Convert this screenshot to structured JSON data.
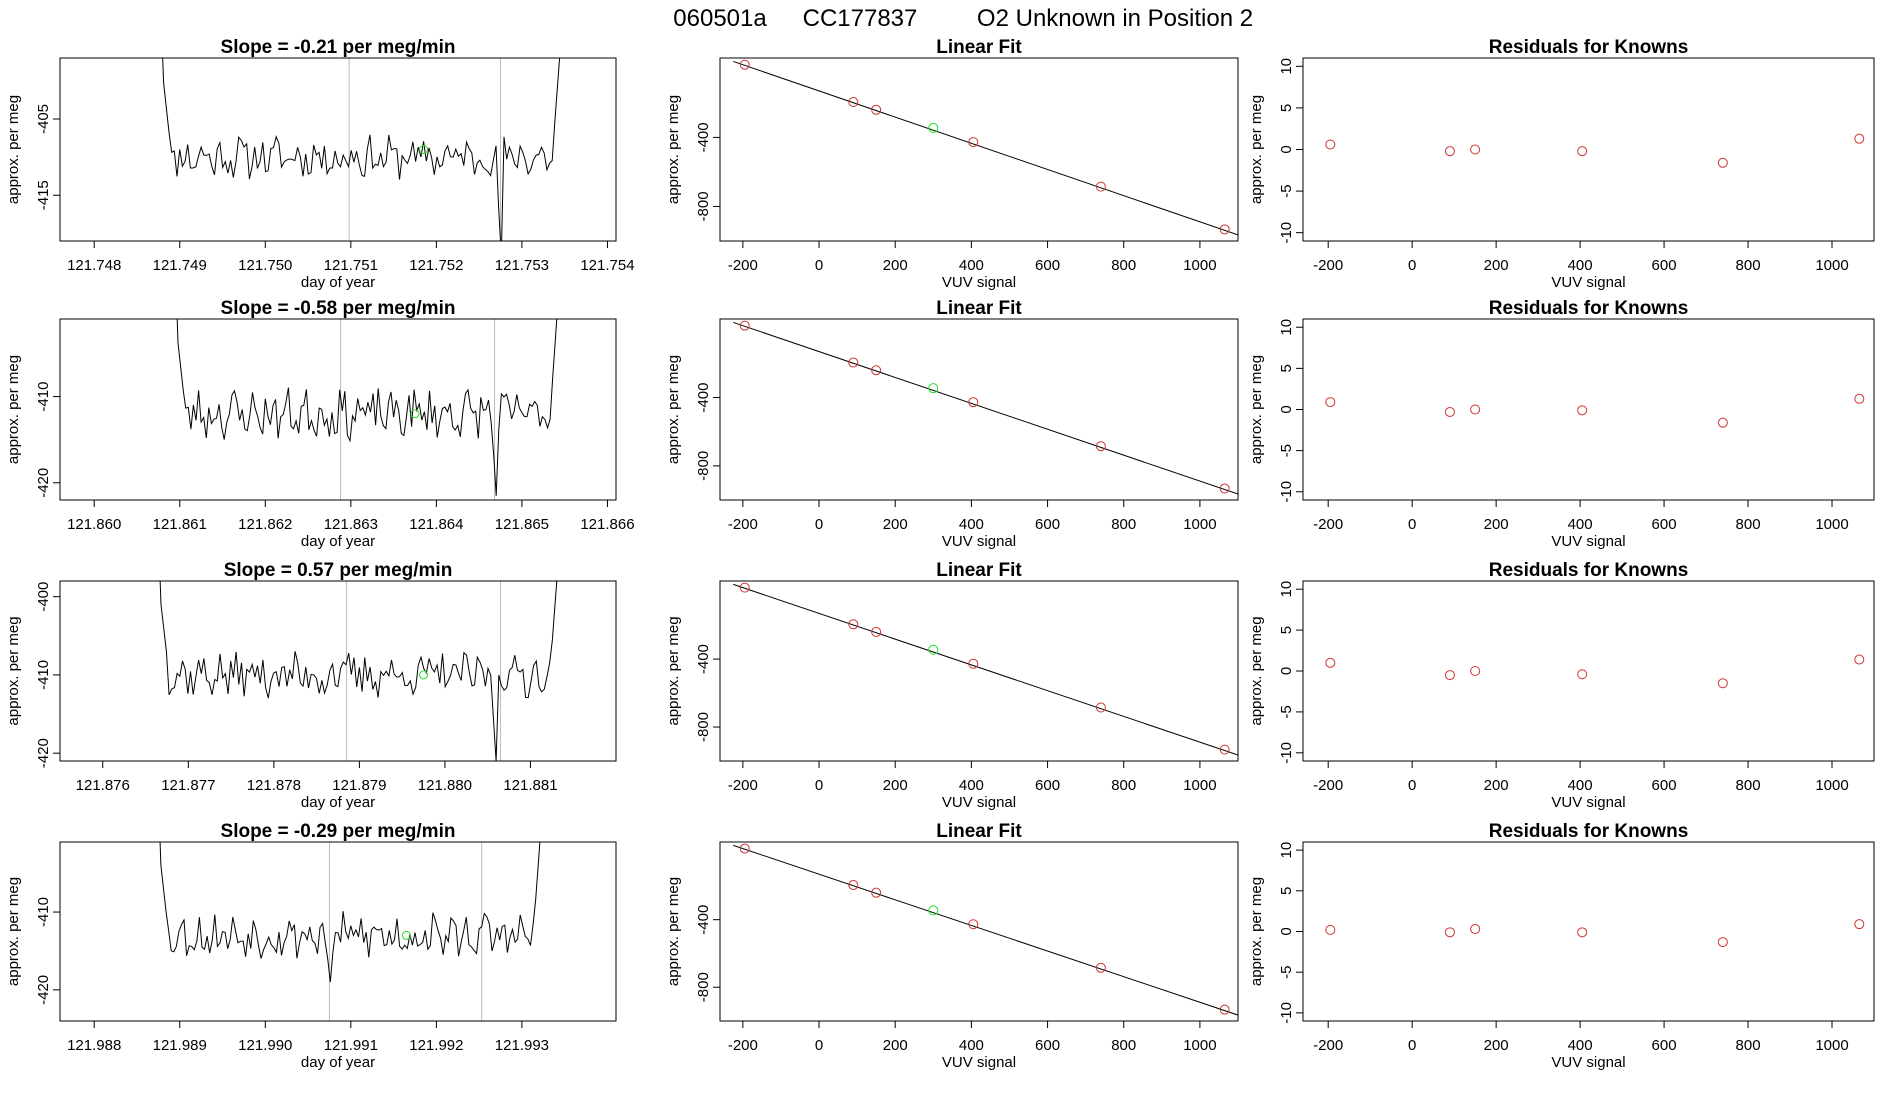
{
  "figure": {
    "title_parts": [
      "060501a",
      "CC177837",
      "O2 Unknown in Position  2"
    ],
    "colors": {
      "trace": "#000000",
      "known": "#cd3333",
      "unknown": "#22dd22",
      "vline": "#bbbbbb"
    }
  },
  "chart_data": [
    {
      "type": "line",
      "panel": "slope-1",
      "title": "Slope =  -0.21  per meg/min",
      "xlabel": "day of year",
      "ylabel": "approx. per meg",
      "xlim": [
        121.7476,
        121.7541
      ],
      "ylim": [
        -421,
        -397
      ],
      "xticks": [
        121.748,
        121.749,
        121.75,
        121.751,
        121.752,
        121.753,
        121.754
      ],
      "xtick_labels": [
        "121.748",
        "121.749",
        "121.750",
        "121.751",
        "121.752",
        "121.753",
        "121.754"
      ],
      "yticks": [
        -405,
        -415
      ],
      "ytick_labels": [
        "-405",
        "-415"
      ],
      "x_start": 121.74878,
      "x_end": 121.75348,
      "vlines": [
        121.75098,
        121.75275
      ],
      "unknown_point": [
        121.75185,
        -409
      ],
      "base": -410,
      "noise": 2.3,
      "seed": 11,
      "spike": [
        121.75275,
        -423
      ]
    },
    {
      "type": "scatter",
      "panel": "fit-1",
      "title": "Linear Fit",
      "xlabel": "VUV signal",
      "ylabel": "approx. per meg",
      "xlim": [
        -260,
        1100
      ],
      "ylim": [
        -1000,
        60
      ],
      "xticks": [
        -200,
        0,
        200,
        400,
        600,
        800,
        1000
      ],
      "yticks": [
        -400,
        -800
      ],
      "ytick_labels": [
        "-400",
        "-800"
      ],
      "fit_line": [
        [
          -225,
          40
        ],
        [
          1100,
          -965
        ]
      ],
      "known_x": [
        -195,
        90,
        150,
        405,
        740,
        1065
      ],
      "known_y": [
        21,
        -195,
        -240,
        -427,
        -685,
        -933
      ],
      "unknown_x": 300,
      "unknown_y": -345
    },
    {
      "type": "scatter",
      "panel": "resid-1",
      "title": "Residuals for Knowns",
      "xlabel": "VUV signal",
      "ylabel": "approx. per meg",
      "xlim": [
        -260,
        1100
      ],
      "ylim": [
        -11,
        11
      ],
      "xticks": [
        -200,
        0,
        200,
        400,
        600,
        800,
        1000
      ],
      "yticks": [
        10,
        5,
        0,
        -5,
        -10
      ],
      "ytick_labels": [
        "10",
        "5",
        "0",
        "-5",
        "-10"
      ],
      "x": [
        -195,
        90,
        150,
        405,
        740,
        1065
      ],
      "y": [
        0.6,
        -0.2,
        0.0,
        -0.2,
        -1.6,
        1.3
      ]
    },
    {
      "type": "line",
      "panel": "slope-2",
      "title": "Slope =  -0.58  per meg/min",
      "xlabel": "day of year",
      "ylabel": "approx. per meg",
      "xlim": [
        121.8596,
        121.8661
      ],
      "ylim": [
        -422,
        -401
      ],
      "xticks": [
        121.86,
        121.861,
        121.862,
        121.863,
        121.864,
        121.865,
        121.866
      ],
      "xtick_labels": [
        "121.860",
        "121.861",
        "121.862",
        "121.863",
        "121.864",
        "121.865",
        "121.866"
      ],
      "yticks": [
        -410,
        -420
      ],
      "ytick_labels": [
        "-410",
        "-420"
      ],
      "x_start": 121.86095,
      "x_end": 121.86545,
      "vlines": [
        121.86288,
        121.86468
      ],
      "unknown_point": [
        121.86375,
        -412
      ],
      "base": -412,
      "noise": 2.4,
      "seed": 23,
      "spike": [
        121.8647,
        -421.5
      ]
    },
    {
      "type": "scatter",
      "panel": "fit-2",
      "title": "Linear Fit",
      "xlabel": "VUV signal",
      "ylabel": "approx. per meg",
      "xlim": [
        -260,
        1100
      ],
      "ylim": [
        -1000,
        60
      ],
      "xticks": [
        -200,
        0,
        200,
        400,
        600,
        800,
        1000
      ],
      "yticks": [
        -400,
        -800
      ],
      "ytick_labels": [
        "-400",
        "-800"
      ],
      "fit_line": [
        [
          -225,
          40
        ],
        [
          1100,
          -965
        ]
      ],
      "known_x": [
        -195,
        90,
        150,
        405,
        740,
        1065
      ],
      "known_y": [
        21,
        -195,
        -240,
        -427,
        -685,
        -933
      ],
      "unknown_x": 300,
      "unknown_y": -345
    },
    {
      "type": "scatter",
      "panel": "resid-2",
      "title": "Residuals for Knowns",
      "xlabel": "VUV signal",
      "ylabel": "approx. per meg",
      "xlim": [
        -260,
        1100
      ],
      "ylim": [
        -11,
        11
      ],
      "xticks": [
        -200,
        0,
        200,
        400,
        600,
        800,
        1000
      ],
      "yticks": [
        10,
        5,
        0,
        -5,
        -10
      ],
      "ytick_labels": [
        "10",
        "5",
        "0",
        "-5",
        "-10"
      ],
      "x": [
        -195,
        90,
        150,
        405,
        740,
        1065
      ],
      "y": [
        0.9,
        -0.3,
        0.0,
        -0.1,
        -1.6,
        1.3
      ]
    },
    {
      "type": "line",
      "panel": "slope-3",
      "title": "Slope =  0.57  per meg/min",
      "xlabel": "day of year",
      "ylabel": "approx. per meg",
      "xlim": [
        121.8755,
        121.882
      ],
      "ylim": [
        -421,
        -398
      ],
      "xticks": [
        121.876,
        121.877,
        121.878,
        121.879,
        121.88,
        121.881
      ],
      "xtick_labels": [
        "121.876",
        "121.877",
        "121.878",
        "121.879",
        "121.880",
        "121.881"
      ],
      "yticks": [
        -400,
        -410,
        -420
      ],
      "ytick_labels": [
        "-400",
        "-410",
        "-420"
      ],
      "x_start": 121.87665,
      "x_end": 121.88135,
      "vlines": [
        121.87885,
        121.88065
      ],
      "unknown_point": [
        121.87975,
        -410
      ],
      "base": -410,
      "noise": 2.4,
      "seed": 37,
      "spike": [
        121.8806,
        -421
      ]
    },
    {
      "type": "scatter",
      "panel": "fit-3",
      "title": "Linear Fit",
      "xlabel": "VUV signal",
      "ylabel": "approx. per meg",
      "xlim": [
        -260,
        1100
      ],
      "ylim": [
        -1000,
        60
      ],
      "xticks": [
        -200,
        0,
        200,
        400,
        600,
        800,
        1000
      ],
      "yticks": [
        -400,
        -800
      ],
      "ytick_labels": [
        "-400",
        "-800"
      ],
      "fit_line": [
        [
          -225,
          40
        ],
        [
          1100,
          -965
        ]
      ],
      "known_x": [
        -195,
        90,
        150,
        405,
        740,
        1065
      ],
      "known_y": [
        21,
        -195,
        -240,
        -427,
        -685,
        -933
      ],
      "unknown_x": 300,
      "unknown_y": -345
    },
    {
      "type": "scatter",
      "panel": "resid-3",
      "title": "Residuals for Knowns",
      "xlabel": "VUV signal",
      "ylabel": "approx. per meg",
      "xlim": [
        -260,
        1100
      ],
      "ylim": [
        -11,
        11
      ],
      "xticks": [
        -200,
        0,
        200,
        400,
        600,
        800,
        1000
      ],
      "yticks": [
        10,
        5,
        0,
        -5,
        -10
      ],
      "ytick_labels": [
        "10",
        "5",
        "0",
        "-5",
        "-10"
      ],
      "x": [
        -195,
        90,
        150,
        405,
        740,
        1065
      ],
      "y": [
        1.0,
        -0.5,
        0.0,
        -0.4,
        -1.5,
        1.4
      ]
    },
    {
      "type": "line",
      "panel": "slope-4",
      "title": "Slope =  -0.29  per meg/min",
      "xlabel": "day of year",
      "ylabel": "approx. per meg",
      "xlim": [
        121.9876,
        121.9941
      ],
      "ylim": [
        -424,
        -401
      ],
      "xticks": [
        121.988,
        121.989,
        121.99,
        121.991,
        121.992,
        121.993
      ],
      "xtick_labels": [
        "121.988",
        "121.989",
        "121.990",
        "121.991",
        "121.992",
        "121.993"
      ],
      "yticks": [
        -410,
        -420
      ],
      "ytick_labels": [
        "-410",
        "-420"
      ],
      "x_start": 121.98875,
      "x_end": 121.99325,
      "vlines": [
        121.99075,
        121.99253
      ],
      "unknown_point": [
        121.99165,
        -413
      ],
      "base": -413,
      "noise": 2.4,
      "seed": 53,
      "spike": [
        121.99075,
        -419
      ]
    },
    {
      "type": "scatter",
      "panel": "fit-4",
      "title": "Linear Fit",
      "xlabel": "VUV signal",
      "ylabel": "approx. per meg",
      "xlim": [
        -260,
        1100
      ],
      "ylim": [
        -1000,
        60
      ],
      "xticks": [
        -200,
        0,
        200,
        400,
        600,
        800,
        1000
      ],
      "yticks": [
        -400,
        -800
      ],
      "ytick_labels": [
        "-400",
        "-800"
      ],
      "fit_line": [
        [
          -225,
          40
        ],
        [
          1100,
          -965
        ]
      ],
      "known_x": [
        -195,
        90,
        150,
        405,
        740,
        1065
      ],
      "known_y": [
        21,
        -195,
        -240,
        -427,
        -685,
        -933
      ],
      "unknown_x": 300,
      "unknown_y": -345
    },
    {
      "type": "scatter",
      "panel": "resid-4",
      "title": "Residuals for Knowns",
      "xlabel": "VUV signal",
      "ylabel": "approx. per meg",
      "xlim": [
        -260,
        1100
      ],
      "ylim": [
        -11,
        11
      ],
      "xticks": [
        -200,
        0,
        200,
        400,
        600,
        800,
        1000
      ],
      "yticks": [
        10,
        5,
        0,
        -5,
        -10
      ],
      "ytick_labels": [
        "10",
        "5",
        "0",
        "-5",
        "-10"
      ],
      "x": [
        -195,
        90,
        150,
        405,
        740,
        1065
      ],
      "y": [
        0.2,
        -0.1,
        0.3,
        -0.1,
        -1.3,
        0.9
      ]
    }
  ]
}
